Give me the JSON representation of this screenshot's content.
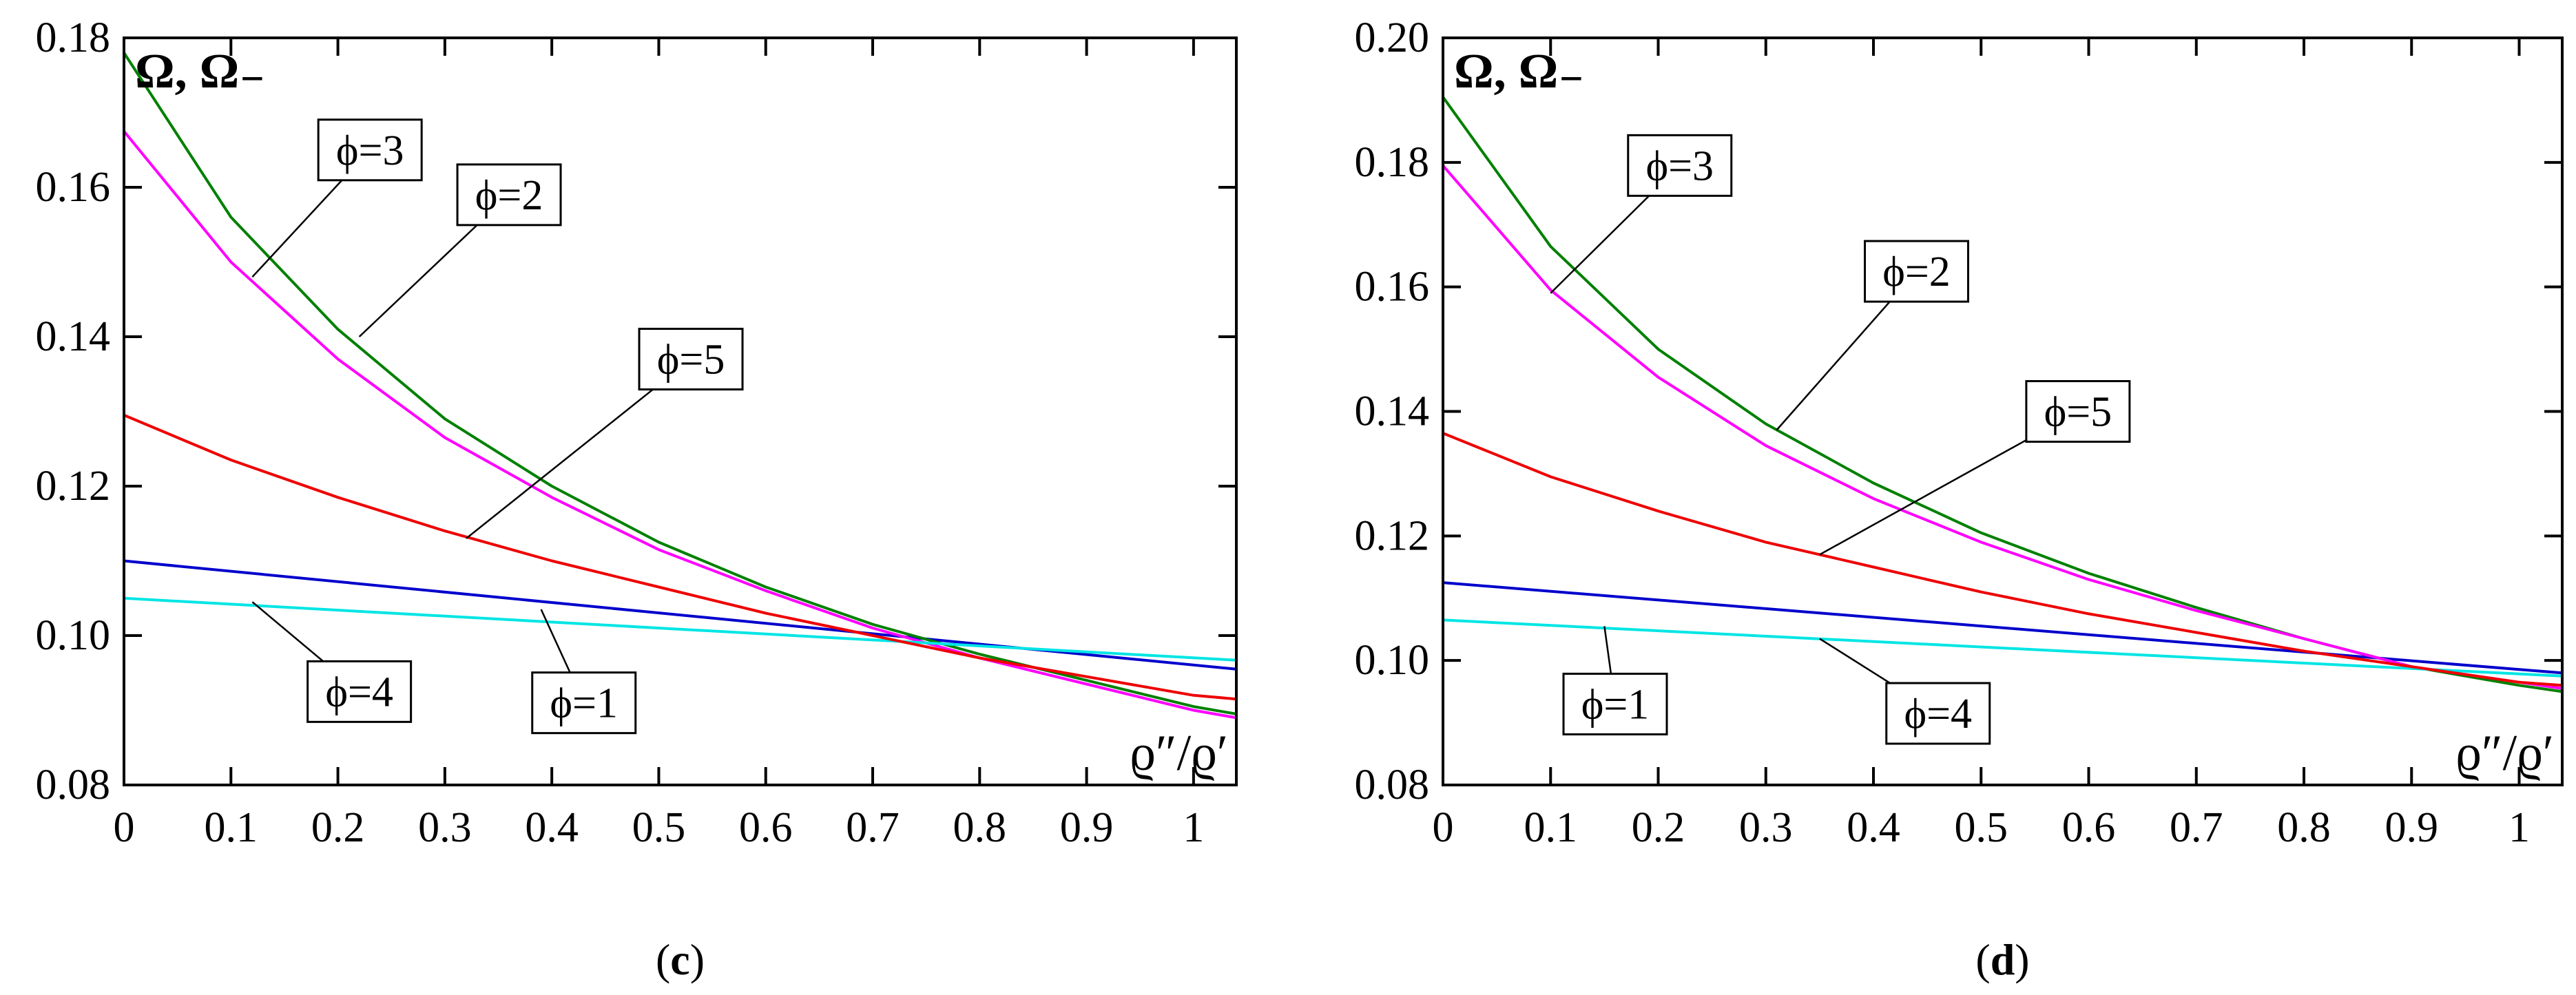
{
  "chart_data": [
    {
      "type": "line",
      "caption": {
        "open": "(",
        "letter": "c",
        "close": ")"
      },
      "ylabel": "Ω, Ω₋",
      "xlabel": "ϱ″/ϱ′",
      "xlim": [
        0,
        1.04
      ],
      "ylim": [
        0.08,
        0.18
      ],
      "x_ticks": [
        0,
        0.1,
        0.2,
        0.3,
        0.4,
        0.5,
        0.6,
        0.7,
        0.8,
        0.9,
        1
      ],
      "x_tick_labels": [
        "0",
        "0.1",
        "0.2",
        "0.3",
        "0.4",
        "0.5",
        "0.6",
        "0.7",
        "0.8",
        "0.9",
        "1"
      ],
      "y_ticks": [
        0.08,
        0.1,
        0.12,
        0.14,
        0.16,
        0.18
      ],
      "y_tick_labels": [
        "0.08",
        "0.10",
        "0.12",
        "0.14",
        "0.16",
        "0.18"
      ],
      "grid": false,
      "series": [
        {
          "name": "ϕ=1",
          "color": "#0000cc",
          "x": [
            0,
            1.04
          ],
          "y": [
            0.11,
            0.0955
          ]
        },
        {
          "name": "ϕ=2",
          "color": "#008000",
          "x": [
            0,
            0.1,
            0.2,
            0.3,
            0.4,
            0.5,
            0.6,
            0.7,
            0.8,
            0.9,
            1.0,
            1.04
          ],
          "y": [
            0.178,
            0.156,
            0.141,
            0.129,
            0.12,
            0.1125,
            0.1065,
            0.1015,
            0.0975,
            0.094,
            0.0905,
            0.0895
          ]
        },
        {
          "name": "ϕ=3",
          "color": "#ff00ff",
          "x": [
            0,
            0.1,
            0.2,
            0.3,
            0.4,
            0.5,
            0.6,
            0.7,
            0.8,
            0.9,
            1.0,
            1.04
          ],
          "y": [
            0.1675,
            0.15,
            0.137,
            0.1265,
            0.1185,
            0.1115,
            0.106,
            0.101,
            0.097,
            0.0935,
            0.09,
            0.089
          ]
        },
        {
          "name": "ϕ=4",
          "color": "#00e5e5",
          "x": [
            0,
            1.04
          ],
          "y": [
            0.105,
            0.0967
          ]
        },
        {
          "name": "ϕ=5",
          "color": "#ee0000",
          "x": [
            0,
            0.1,
            0.2,
            0.3,
            0.4,
            0.5,
            0.6,
            0.7,
            0.8,
            0.9,
            1.0,
            1.04
          ],
          "y": [
            0.1295,
            0.1235,
            0.1185,
            0.114,
            0.11,
            0.1065,
            0.103,
            0.1,
            0.097,
            0.0945,
            0.092,
            0.0915
          ]
        }
      ],
      "callouts": [
        {
          "text": "ϕ=3",
          "series": "ϕ=3",
          "point": [
            0.12,
            0.148
          ],
          "box": [
            0.23,
            0.165
          ]
        },
        {
          "text": "ϕ=2",
          "series": "ϕ=2",
          "point": [
            0.22,
            0.14
          ],
          "box": [
            0.36,
            0.159
          ]
        },
        {
          "text": "ϕ=5",
          "series": "ϕ=5",
          "point": [
            0.32,
            0.113
          ],
          "box": [
            0.53,
            0.137
          ]
        },
        {
          "text": "ϕ=4",
          "series": "ϕ=4",
          "point": [
            0.12,
            0.1045
          ],
          "box": [
            0.22,
            0.0925
          ]
        },
        {
          "text": "ϕ=1",
          "series": "ϕ=1",
          "point": [
            0.39,
            0.1035
          ],
          "box": [
            0.43,
            0.091
          ]
        }
      ]
    },
    {
      "type": "line",
      "caption": {
        "open": "(",
        "letter": "d",
        "close": ")"
      },
      "ylabel": "Ω, Ω₋",
      "xlabel": "ϱ″/ϱ′",
      "xlim": [
        0,
        1.04
      ],
      "ylim": [
        0.08,
        0.2
      ],
      "x_ticks": [
        0,
        0.1,
        0.2,
        0.3,
        0.4,
        0.5,
        0.6,
        0.7,
        0.8,
        0.9,
        1
      ],
      "x_tick_labels": [
        "0",
        "0.1",
        "0.2",
        "0.3",
        "0.4",
        "0.5",
        "0.6",
        "0.7",
        "0.8",
        "0.9",
        "1"
      ],
      "y_ticks": [
        0.08,
        0.1,
        0.12,
        0.14,
        0.16,
        0.18,
        0.2
      ],
      "y_tick_labels": [
        "0.08",
        "0.10",
        "0.12",
        "0.14",
        "0.16",
        "0.18",
        "0.20"
      ],
      "grid": false,
      "series": [
        {
          "name": "ϕ=1",
          "color": "#0000cc",
          "x": [
            0,
            1.04
          ],
          "y": [
            0.1125,
            0.098
          ]
        },
        {
          "name": "ϕ=2",
          "color": "#008000",
          "x": [
            0,
            0.1,
            0.2,
            0.3,
            0.4,
            0.5,
            0.6,
            0.7,
            0.8,
            0.9,
            1.0,
            1.04
          ],
          "y": [
            0.1905,
            0.1665,
            0.15,
            0.138,
            0.1285,
            0.1205,
            0.114,
            0.1085,
            0.1035,
            0.099,
            0.096,
            0.095
          ]
        },
        {
          "name": "ϕ=3",
          "color": "#ff00ff",
          "x": [
            0,
            0.1,
            0.2,
            0.3,
            0.4,
            0.5,
            0.6,
            0.7,
            0.8,
            0.9,
            1.0,
            1.04
          ],
          "y": [
            0.1795,
            0.1595,
            0.1455,
            0.1345,
            0.126,
            0.119,
            0.113,
            0.108,
            0.1035,
            0.099,
            0.0965,
            0.0955
          ]
        },
        {
          "name": "ϕ=4",
          "color": "#00e5e5",
          "x": [
            0,
            1.04
          ],
          "y": [
            0.1065,
            0.0975
          ]
        },
        {
          "name": "ϕ=5",
          "color": "#ee0000",
          "x": [
            0,
            0.1,
            0.2,
            0.3,
            0.4,
            0.5,
            0.6,
            0.7,
            0.8,
            0.9,
            1.0,
            1.04
          ],
          "y": [
            0.1365,
            0.1295,
            0.124,
            0.119,
            0.115,
            0.111,
            0.1075,
            0.1045,
            0.1015,
            0.099,
            0.0965,
            0.096
          ]
        }
      ],
      "callouts": [
        {
          "text": "ϕ=3",
          "series": "ϕ=3",
          "point": [
            0.1,
            0.159
          ],
          "box": [
            0.22,
            0.1795
          ]
        },
        {
          "text": "ϕ=2",
          "series": "ϕ=2",
          "point": [
            0.31,
            0.137
          ],
          "box": [
            0.44,
            0.1625
          ]
        },
        {
          "text": "ϕ=5",
          "series": "ϕ=5",
          "point": [
            0.35,
            0.117
          ],
          "box": [
            0.59,
            0.14
          ]
        },
        {
          "text": "ϕ=1",
          "series": "ϕ=1",
          "point": [
            0.15,
            0.1055
          ],
          "box": [
            0.16,
            0.093
          ]
        },
        {
          "text": "ϕ=4",
          "series": "ϕ=4",
          "point": [
            0.35,
            0.1035
          ],
          "box": [
            0.46,
            0.0915
          ]
        }
      ]
    }
  ]
}
